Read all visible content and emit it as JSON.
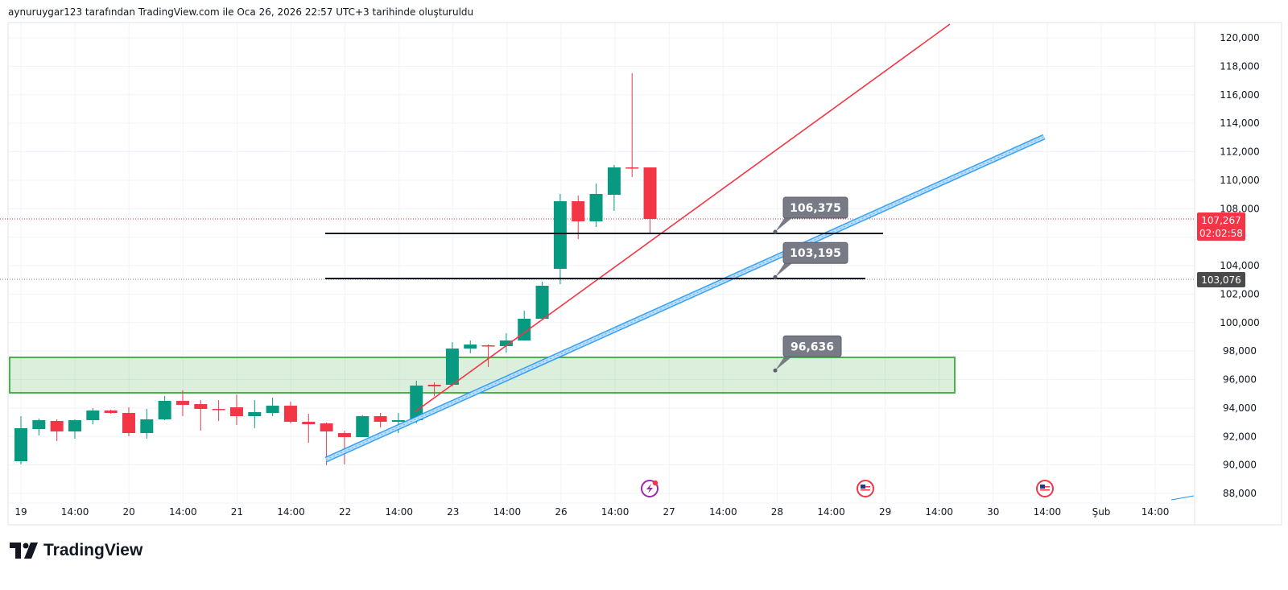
{
  "header": {
    "text": "aynuruygar123 tarafından TradingView.com ile Oca 26, 2026 22:57 UTC+3 tarihinde oluşturuldu"
  },
  "logo": {
    "text": "TradingView"
  },
  "colors": {
    "up": "#089981",
    "down": "#f23645",
    "zone": "#4caf50",
    "channel": "#2196f3",
    "trendline": "#f23645"
  },
  "chart_data": {
    "type": "candlestick",
    "ylim": [
      88000,
      120000
    ],
    "y_ticks": [
      "120,000",
      "118,000",
      "116,000",
      "114,000",
      "112,000",
      "110,000",
      "108,000",
      "106,000",
      "104,000",
      "102,000",
      "100,000",
      "98,000",
      "96,000",
      "94,000",
      "92,000",
      "90,000",
      "88,000"
    ],
    "y_tick_values": [
      120000,
      118000,
      116000,
      114000,
      112000,
      110000,
      108000,
      106000,
      104000,
      102000,
      100000,
      98000,
      96000,
      94000,
      92000,
      90000,
      88000
    ],
    "x_ticks": [
      "19",
      "14:00",
      "20",
      "14:00",
      "21",
      "14:00",
      "22",
      "14:00",
      "23",
      "14:00",
      "26",
      "14:00",
      "27",
      "14:00",
      "28",
      "14:00",
      "29",
      "14:00",
      "30",
      "14:00",
      "Şub",
      "14:00"
    ],
    "candles": [
      [
        90260,
        93426,
        90033,
        92578
      ],
      [
        92521,
        93256,
        92069,
        93143
      ],
      [
        93087,
        93200,
        91673,
        92352
      ],
      [
        92352,
        93200,
        91843,
        93143
      ],
      [
        93143,
        93991,
        92860,
        93822
      ],
      [
        93822,
        93878,
        93595,
        93652
      ],
      [
        93652,
        94048,
        92012,
        92238
      ],
      [
        92238,
        93935,
        91843,
        93200
      ],
      [
        93200,
        94839,
        93143,
        94500
      ],
      [
        94500,
        95235,
        93426,
        94217
      ],
      [
        94274,
        94557,
        92408,
        93935
      ],
      [
        93935,
        94557,
        93087,
        93878
      ],
      [
        94048,
        94952,
        92804,
        93426
      ],
      [
        93426,
        94557,
        92578,
        93709
      ],
      [
        93652,
        94726,
        93426,
        94161
      ],
      [
        94161,
        94444,
        92917,
        93030
      ],
      [
        93030,
        93595,
        91560,
        92860
      ],
      [
        92917,
        92974,
        89977,
        92352
      ],
      [
        92238,
        92408,
        90033,
        91956
      ],
      [
        91956,
        93482,
        91956,
        93426
      ],
      [
        93426,
        93652,
        92634,
        93030
      ],
      [
        93030,
        93652,
        92238,
        93143
      ],
      [
        93143,
        95913,
        92917,
        95574
      ],
      [
        95631,
        95800,
        94839,
        95518
      ],
      [
        95631,
        98628,
        95518,
        98175
      ],
      [
        98175,
        98741,
        97836,
        98458
      ],
      [
        98401,
        98458,
        96875,
        98345
      ],
      [
        98345,
        99250,
        97893,
        98741
      ],
      [
        98741,
        100834,
        98741,
        100268
      ],
      [
        100268,
        102869,
        100268,
        102586
      ],
      [
        103775,
        109033,
        102700,
        108524
      ],
      [
        108524,
        108920,
        105864,
        107110
      ],
      [
        107110,
        109768,
        106713,
        109033
      ],
      [
        108977,
        111069,
        107845,
        110899
      ],
      [
        110899,
        117514,
        110221,
        110843
      ],
      [
        110899,
        110899,
        106261,
        107280
      ]
    ],
    "candle_format": [
      "open",
      "high",
      "low",
      "close"
    ],
    "last_price": {
      "value": "107,267",
      "countdown": "02:02:58"
    },
    "marked_price": {
      "value": "103,076"
    },
    "annotations": [
      {
        "label": "106,375",
        "price": 106375
      },
      {
        "label": "103,195",
        "price": 103195
      },
      {
        "label": "96,636",
        "price": 96636
      }
    ],
    "support_zone": {
      "from": 95200,
      "to": 97600
    },
    "events": [
      {
        "icon": "lightning-icon"
      },
      {
        "icon": "us-flag-icon"
      },
      {
        "icon": "us-flag-icon"
      }
    ]
  }
}
